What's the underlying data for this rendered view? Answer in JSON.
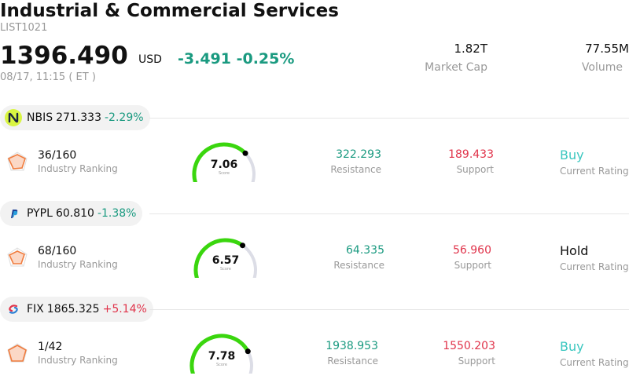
{
  "header": {
    "title": "Industrial & Commercial Services",
    "code": "LIST1021",
    "price": "1396.490",
    "currency": "USD",
    "change": "-3.491",
    "change_pct": "-0.25%",
    "time": "08/17, 11:15  ( ET )",
    "market_cap_value": "1.82T",
    "market_cap_label": "Market Cap",
    "volume_value": "77.55M",
    "volume_label": "Volume"
  },
  "colors": {
    "up": "#e0334a",
    "down": "#1a9a80",
    "buy": "#3cc7c0",
    "gauge_fill": "#3ad60e",
    "gauge_track": "#dcdde6"
  },
  "stocks": [
    {
      "symbol": "NBIS",
      "price": "271.333",
      "change_pct": "-2.29%",
      "logo": "nbis-logo",
      "rank": "36/160",
      "rank_label": "Industry Ranking",
      "score": "7.06",
      "score_label": "Score",
      "score_fraction": 0.706,
      "resistance": "322.293",
      "resistance_label": "Resistance",
      "support": "189.433",
      "support_label": "Support",
      "rating": "Buy",
      "rating_label": "Current Rating"
    },
    {
      "symbol": "PYPL",
      "price": "60.810",
      "change_pct": "-1.38%",
      "logo": "paypal-logo",
      "rank": "68/160",
      "rank_label": "Industry Ranking",
      "score": "6.57",
      "score_label": "Score",
      "score_fraction": 0.657,
      "resistance": "64.335",
      "resistance_label": "Resistance",
      "support": "56.960",
      "support_label": "Support",
      "rating": "Hold",
      "rating_label": "Current Rating"
    },
    {
      "symbol": "FIX",
      "price": "1865.325",
      "change_pct": "+5.14%",
      "logo": "fix-logo",
      "rank": "1/42",
      "rank_label": "Industry Ranking",
      "score": "7.78",
      "score_label": "Score",
      "score_fraction": 0.778,
      "resistance": "1938.953",
      "resistance_label": "Resistance",
      "support": "1550.203",
      "support_label": "Support",
      "rating": "Buy",
      "rating_label": "Current Rating"
    }
  ]
}
